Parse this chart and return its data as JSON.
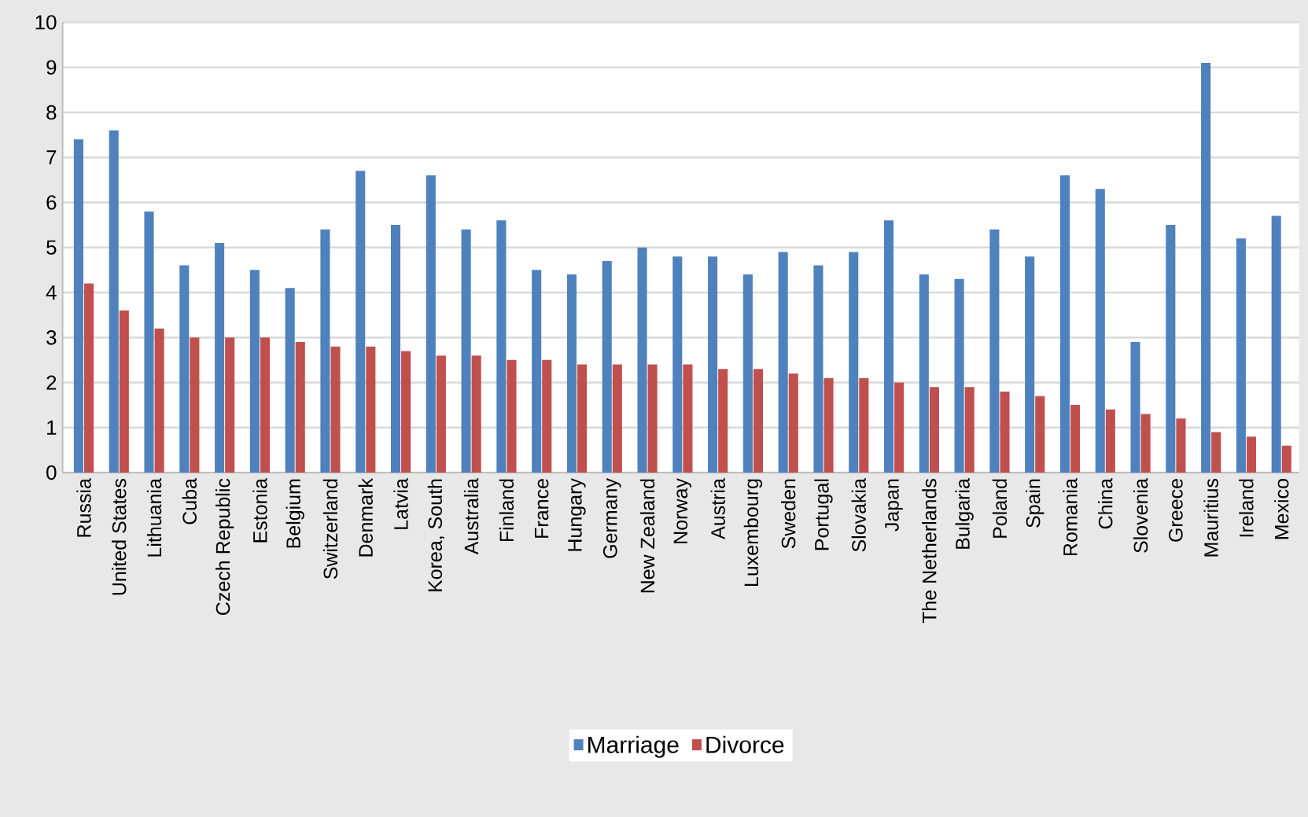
{
  "chart_data": {
    "type": "bar",
    "categories": [
      "Russia",
      "United States",
      "Lithuania",
      "Cuba",
      "Czech Republic",
      "Estonia",
      "Belgium",
      "Switzerland",
      "Denmark",
      "Latvia",
      "Korea, South",
      "Australia",
      "Finland",
      "France",
      "Hungary",
      "Germany",
      "New Zealand",
      "Norway",
      "Austria",
      "Luxembourg",
      "Sweden",
      "Portugal",
      "Slovakia",
      "Japan",
      "The Netherlands",
      "Bulgaria",
      "Poland",
      "Spain",
      "Romania",
      "China",
      "Slovenia",
      "Greece",
      "Mauritius",
      "Ireland",
      "Mexico"
    ],
    "series": [
      {
        "name": "Marriage",
        "color": "#4f81bd",
        "values": [
          7.4,
          7.6,
          5.8,
          4.6,
          5.1,
          4.5,
          4.1,
          5.4,
          6.7,
          5.5,
          6.6,
          5.4,
          5.6,
          4.5,
          4.4,
          4.7,
          5.0,
          4.8,
          4.8,
          4.4,
          4.9,
          4.6,
          4.9,
          5.6,
          4.4,
          4.3,
          5.4,
          4.8,
          6.6,
          6.3,
          2.9,
          5.5,
          9.1,
          5.2,
          5.7
        ]
      },
      {
        "name": "Divorce",
        "color": "#c0504d",
        "values": [
          4.2,
          3.6,
          3.2,
          3.0,
          3.0,
          3.0,
          2.9,
          2.8,
          2.8,
          2.7,
          2.6,
          2.6,
          2.5,
          2.5,
          2.4,
          2.4,
          2.4,
          2.4,
          2.3,
          2.3,
          2.2,
          2.1,
          2.1,
          2.0,
          1.9,
          1.9,
          1.8,
          1.7,
          1.5,
          1.4,
          1.3,
          1.2,
          0.9,
          0.8,
          0.6
        ]
      }
    ],
    "ylim": [
      0,
      10
    ],
    "yticks": [
      0,
      1,
      2,
      3,
      4,
      5,
      6,
      7,
      8,
      9,
      10
    ],
    "grid": "y",
    "legend": "bottom"
  }
}
